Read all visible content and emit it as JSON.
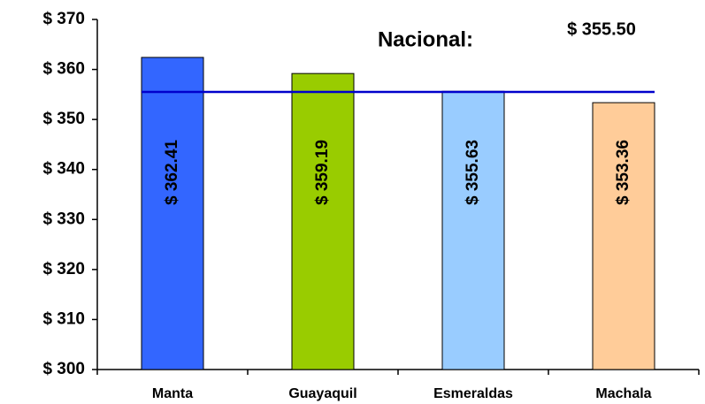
{
  "chart_data": {
    "type": "bar",
    "categories": [
      "Manta",
      "Guayaquil",
      "Esmeraldas",
      "Machala"
    ],
    "values": [
      362.41,
      359.19,
      355.63,
      353.36
    ],
    "value_labels": [
      "$ 362.41",
      "$ 359.19",
      "$ 355.63",
      "$ 353.36"
    ],
    "colors": [
      "#3366ff",
      "#99cc00",
      "#99ccff",
      "#ffcc99"
    ],
    "ylim": [
      300,
      370
    ],
    "yticks": [
      {
        "value": 300,
        "label": "$ 300"
      },
      {
        "value": 310,
        "label": "$ 310"
      },
      {
        "value": 320,
        "label": "$ 320"
      },
      {
        "value": 330,
        "label": "$ 330"
      },
      {
        "value": 340,
        "label": "$ 340"
      },
      {
        "value": 350,
        "label": "$ 350"
      },
      {
        "value": 360,
        "label": "$ 360"
      },
      {
        "value": 370,
        "label": "$ 370"
      }
    ],
    "reference_line": {
      "label": "Nacional:",
      "value": 355.5,
      "value_label": "$ 355.50",
      "color": "#0000cc"
    }
  }
}
